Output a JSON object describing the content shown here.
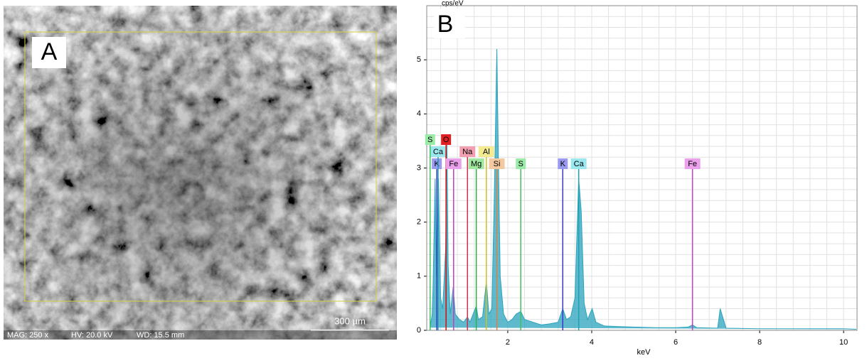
{
  "sem_image": {
    "label": "A",
    "scale_bar": "300 µm",
    "info": [
      "MAG: 250 x",
      "HV: 20.0 kV",
      "WD: 15.5 mm"
    ]
  },
  "chart_data": {
    "type": "line",
    "title": "B",
    "ylabel": "cps/eV",
    "xlabel": "keV",
    "xlim": [
      0.07,
      10.32
    ],
    "ylim": [
      0,
      6
    ],
    "xticks": [
      2,
      4,
      6,
      8,
      10
    ],
    "yticks": [
      0,
      1,
      2,
      3,
      4,
      5
    ],
    "grid": true,
    "xgrid_step": 0.4,
    "ygrid_step": 0.2,
    "series": [
      {
        "color": "#2aa3bd",
        "x": [
          0.15,
          0.2,
          0.22,
          0.27,
          0.3,
          0.35,
          0.4,
          0.45,
          0.52,
          0.55,
          0.58,
          0.63,
          0.7,
          0.75,
          0.85,
          0.95,
          1.04,
          1.1,
          1.25,
          1.3,
          1.4,
          1.49,
          1.55,
          1.62,
          1.68,
          1.74,
          1.78,
          1.82,
          1.9,
          2.0,
          2.1,
          2.2,
          2.31,
          2.4,
          2.6,
          2.8,
          3.0,
          3.2,
          3.31,
          3.4,
          3.5,
          3.6,
          3.69,
          3.75,
          3.82,
          3.9,
          4.01,
          4.1,
          4.3,
          4.6,
          5.0,
          5.5,
          6.0,
          6.3,
          6.4,
          6.5,
          7.0,
          7.06,
          7.2,
          8.0,
          9.0,
          10.0,
          10.3
        ],
        "values": [
          0.05,
          0.3,
          0.8,
          2.8,
          1.0,
          2.8,
          0.6,
          0.4,
          1.5,
          3.5,
          1.2,
          0.3,
          0.8,
          0.3,
          0.2,
          0.15,
          0.25,
          0.15,
          0.45,
          0.2,
          0.25,
          0.9,
          0.3,
          0.4,
          2.5,
          5.2,
          3.0,
          1.0,
          0.3,
          0.15,
          0.2,
          0.3,
          0.35,
          0.2,
          0.15,
          0.1,
          0.12,
          0.15,
          0.4,
          0.2,
          0.25,
          0.6,
          2.8,
          2.2,
          0.5,
          0.2,
          0.4,
          0.15,
          0.08,
          0.07,
          0.06,
          0.05,
          0.05,
          0.06,
          0.1,
          0.05,
          0.04,
          0.4,
          0.04,
          0.03,
          0.03,
          0.03,
          0.02
        ]
      }
    ],
    "element_lines": [
      {
        "label": "K",
        "x": 0.31,
        "color": "#3a3ac8",
        "fill": "#9a9af0"
      },
      {
        "label": "Ca",
        "x": 0.34,
        "color": "#20a0b0",
        "fill": "#9ae8ee"
      },
      {
        "label": "S",
        "x": 0.15,
        "color": "#40c060",
        "fill": "#9aeaa8"
      },
      {
        "label": "O",
        "x": 0.53,
        "color": "#d01010",
        "fill": "#e02020"
      },
      {
        "label": "Fe",
        "x": 0.71,
        "color": "#c040c0",
        "fill": "#eaa0ea"
      },
      {
        "label": "Na",
        "x": 1.04,
        "color": "#d03050",
        "fill": "#f0a0b0"
      },
      {
        "label": "Mg",
        "x": 1.25,
        "color": "#30b040",
        "fill": "#a0e8a0"
      },
      {
        "label": "Al",
        "x": 1.49,
        "color": "#d0c020",
        "fill": "#f4ea90"
      },
      {
        "label": "Si",
        "x": 1.74,
        "color": "#e08040",
        "fill": "#f4c8a0"
      },
      {
        "label": "S",
        "x": 2.31,
        "color": "#40c060",
        "fill": "#9aeaa8"
      },
      {
        "label": "K",
        "x": 3.31,
        "color": "#3a3ac8",
        "fill": "#9a9af0"
      },
      {
        "label": "Ca",
        "x": 3.69,
        "color": "#20a0b0",
        "fill": "#9ae8ee"
      },
      {
        "label": "Fe",
        "x": 6.4,
        "color": "#c040c0",
        "fill": "#eaa0ea"
      }
    ]
  }
}
